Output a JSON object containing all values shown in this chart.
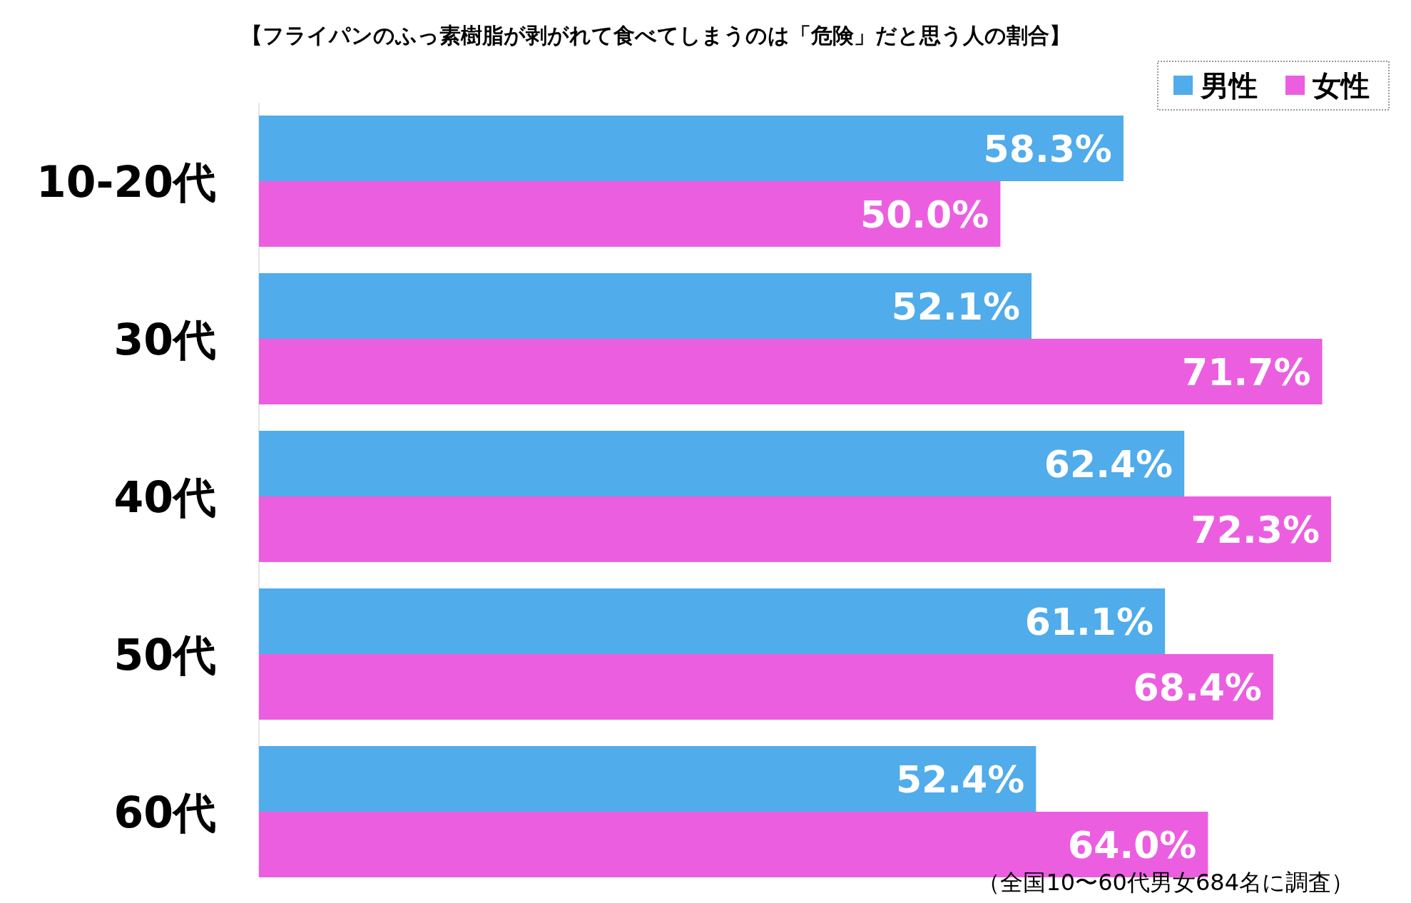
{
  "chart_data": {
    "type": "bar",
    "orientation": "horizontal",
    "title": "【フライパンのふっ素樹脂が剥がれて食べてしまうのは「危険」だと思う人の割合】",
    "categories": [
      "10-20代",
      "30代",
      "40代",
      "50代",
      "60代"
    ],
    "series": [
      {
        "name": "男性",
        "color": "#50acea",
        "values": [
          58.3,
          52.1,
          62.4,
          61.1,
          52.4
        ],
        "value_labels": [
          "58.3%",
          "52.1%",
          "62.4%",
          "61.1%",
          "52.4%"
        ]
      },
      {
        "name": "女性",
        "color": "#ec5ee0",
        "values": [
          50.0,
          71.7,
          72.3,
          68.4,
          64.0
        ],
        "value_labels": [
          "50.0%",
          "71.7%",
          "72.3%",
          "68.4%",
          "64.0%"
        ]
      }
    ],
    "legend": "top right",
    "tick_labels": "y",
    "annotations": [
      "（全国10〜60代男女684名に調査）"
    ]
  }
}
